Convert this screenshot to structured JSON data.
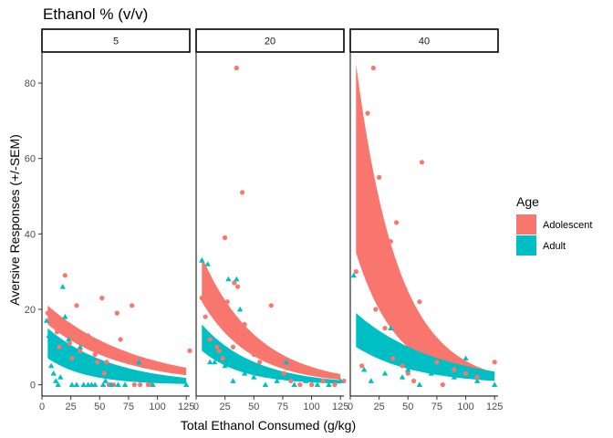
{
  "chart_data": {
    "type": "scatter",
    "title": "Ethanol % (v/v)",
    "xlabel": "Total Ethanol Consumed (g/kg)",
    "ylabel": "Aversive Responses (+/-SEM)",
    "xlim": [
      0,
      128
    ],
    "ylim": [
      -3,
      88
    ],
    "x_ticks": [
      0,
      25,
      50,
      75,
      100,
      125
    ],
    "x_tick_labels": [
      "0",
      "25",
      "50",
      "75",
      "100",
      "125"
    ],
    "y_ticks": [
      0,
      20,
      40,
      60,
      80
    ],
    "y_tick_labels": [
      "0",
      "20",
      "40",
      "60",
      "80"
    ],
    "legend": {
      "title": "Age",
      "placement": "right",
      "entries": [
        {
          "label": "Adolescent",
          "color": "#F8766D"
        },
        {
          "label": "Adult",
          "color": "#00BFC4"
        }
      ]
    },
    "panels": [
      {
        "label": "5",
        "adolescent_points": [
          [
            5,
            19
          ],
          [
            10,
            17
          ],
          [
            13,
            14
          ],
          [
            15,
            10
          ],
          [
            18,
            16
          ],
          [
            20,
            29
          ],
          [
            22,
            15
          ],
          [
            24,
            11
          ],
          [
            26,
            7
          ],
          [
            28,
            14
          ],
          [
            30,
            21
          ],
          [
            33,
            9
          ],
          [
            35,
            13
          ],
          [
            37,
            13
          ],
          [
            40,
            13
          ],
          [
            42,
            12
          ],
          [
            44,
            11
          ],
          [
            46,
            8
          ],
          [
            48,
            6
          ],
          [
            52,
            23
          ],
          [
            54,
            3
          ],
          [
            56,
            6
          ],
          [
            58,
            0
          ],
          [
            62,
            0
          ],
          [
            65,
            19
          ],
          [
            68,
            12
          ],
          [
            72,
            8
          ],
          [
            78,
            21
          ],
          [
            80,
            0
          ],
          [
            85,
            0
          ],
          [
            92,
            0
          ],
          [
            95,
            0
          ],
          [
            128,
            9
          ]
        ],
        "adult_points": [
          [
            4,
            17
          ],
          [
            6,
            13
          ],
          [
            7,
            12
          ],
          [
            8,
            5
          ],
          [
            10,
            3
          ],
          [
            12,
            1
          ],
          [
            14,
            0
          ],
          [
            16,
            2
          ],
          [
            18,
            26
          ],
          [
            20,
            18
          ],
          [
            23,
            12
          ],
          [
            26,
            0
          ],
          [
            28,
            6
          ],
          [
            30,
            0
          ],
          [
            33,
            10
          ],
          [
            36,
            0
          ],
          [
            40,
            0
          ],
          [
            43,
            0
          ],
          [
            46,
            0
          ],
          [
            50,
            4
          ],
          [
            53,
            0
          ],
          [
            55,
            1
          ],
          [
            60,
            0
          ],
          [
            66,
            0
          ],
          [
            72,
            0
          ],
          [
            84,
            6
          ],
          [
            96,
            0
          ],
          [
            110,
            1
          ],
          [
            125,
            0
          ]
        ],
        "adolescent_band": {
          "x": [
            5,
            125
          ],
          "lower": [
            16,
            2.5
          ],
          "upper": [
            21,
            4.5
          ]
        },
        "adult_band": {
          "x": [
            5,
            125
          ],
          "lower": [
            7,
            0.2
          ],
          "upper": [
            15,
            1.8
          ]
        }
      },
      {
        "label": "20",
        "adolescent_points": [
          [
            5,
            23
          ],
          [
            8,
            18
          ],
          [
            12,
            12
          ],
          [
            18,
            10
          ],
          [
            20,
            9
          ],
          [
            23,
            7
          ],
          [
            25,
            39
          ],
          [
            27,
            22
          ],
          [
            30,
            15
          ],
          [
            32,
            10
          ],
          [
            33,
            27
          ],
          [
            35,
            84
          ],
          [
            36,
            26
          ],
          [
            40,
            51
          ],
          [
            42,
            16
          ],
          [
            45,
            14
          ],
          [
            48,
            9
          ],
          [
            50,
            8
          ],
          [
            55,
            6
          ],
          [
            60,
            8
          ],
          [
            65,
            21
          ],
          [
            70,
            6
          ],
          [
            76,
            3
          ],
          [
            82,
            1
          ],
          [
            90,
            0
          ],
          [
            100,
            0
          ],
          [
            110,
            1
          ],
          [
            120,
            0
          ],
          [
            128,
            1
          ]
        ],
        "adult_points": [
          [
            5,
            33
          ],
          [
            10,
            32
          ],
          [
            12,
            6
          ],
          [
            16,
            6
          ],
          [
            22,
            10
          ],
          [
            25,
            5
          ],
          [
            28,
            28
          ],
          [
            30,
            6
          ],
          [
            32,
            1
          ],
          [
            35,
            28
          ],
          [
            38,
            20
          ],
          [
            42,
            3
          ],
          [
            45,
            6
          ],
          [
            50,
            2
          ],
          [
            55,
            5
          ],
          [
            60,
            0
          ],
          [
            70,
            1
          ],
          [
            78,
            6
          ],
          [
            85,
            0
          ],
          [
            95,
            1
          ],
          [
            105,
            0
          ],
          [
            115,
            0
          ],
          [
            125,
            1
          ]
        ],
        "adolescent_band": {
          "x": [
            5,
            125
          ],
          "lower": [
            22,
            1.3
          ],
          "upper": [
            34,
            2.8
          ]
        },
        "adult_band": {
          "x": [
            5,
            125
          ],
          "lower": [
            9,
            0.3
          ],
          "upper": [
            16,
            1.2
          ]
        }
      },
      {
        "label": "40",
        "adolescent_points": [
          [
            5,
            30
          ],
          [
            10,
            5
          ],
          [
            15,
            72
          ],
          [
            20,
            84
          ],
          [
            22,
            20
          ],
          [
            25,
            55
          ],
          [
            30,
            15
          ],
          [
            35,
            38
          ],
          [
            37,
            7
          ],
          [
            40,
            43
          ],
          [
            42,
            25
          ],
          [
            45,
            5
          ],
          [
            50,
            3
          ],
          [
            55,
            1
          ],
          [
            60,
            22
          ],
          [
            62,
            59
          ],
          [
            68,
            10
          ],
          [
            75,
            6
          ],
          [
            80,
            0
          ],
          [
            90,
            4
          ],
          [
            100,
            3
          ],
          [
            110,
            2
          ],
          [
            125,
            6
          ]
        ],
        "adult_points": [
          [
            3,
            29
          ],
          [
            8,
            16
          ],
          [
            12,
            4
          ],
          [
            18,
            1
          ],
          [
            25,
            8
          ],
          [
            30,
            3
          ],
          [
            35,
            15
          ],
          [
            40,
            6
          ],
          [
            45,
            2
          ],
          [
            50,
            4
          ],
          [
            55,
            8
          ],
          [
            60,
            0
          ],
          [
            70,
            3
          ],
          [
            80,
            5
          ],
          [
            90,
            2
          ],
          [
            100,
            7
          ],
          [
            110,
            1
          ],
          [
            120,
            3
          ],
          [
            125,
            0
          ]
        ],
        "adolescent_band": {
          "x": [
            5,
            125
          ],
          "lower": [
            35,
            1.2
          ],
          "upper": [
            85,
            3.2
          ]
        },
        "adult_band": {
          "x": [
            5,
            125
          ],
          "lower": [
            10,
            1.0
          ],
          "upper": [
            19,
            3.5
          ]
        }
      }
    ]
  }
}
